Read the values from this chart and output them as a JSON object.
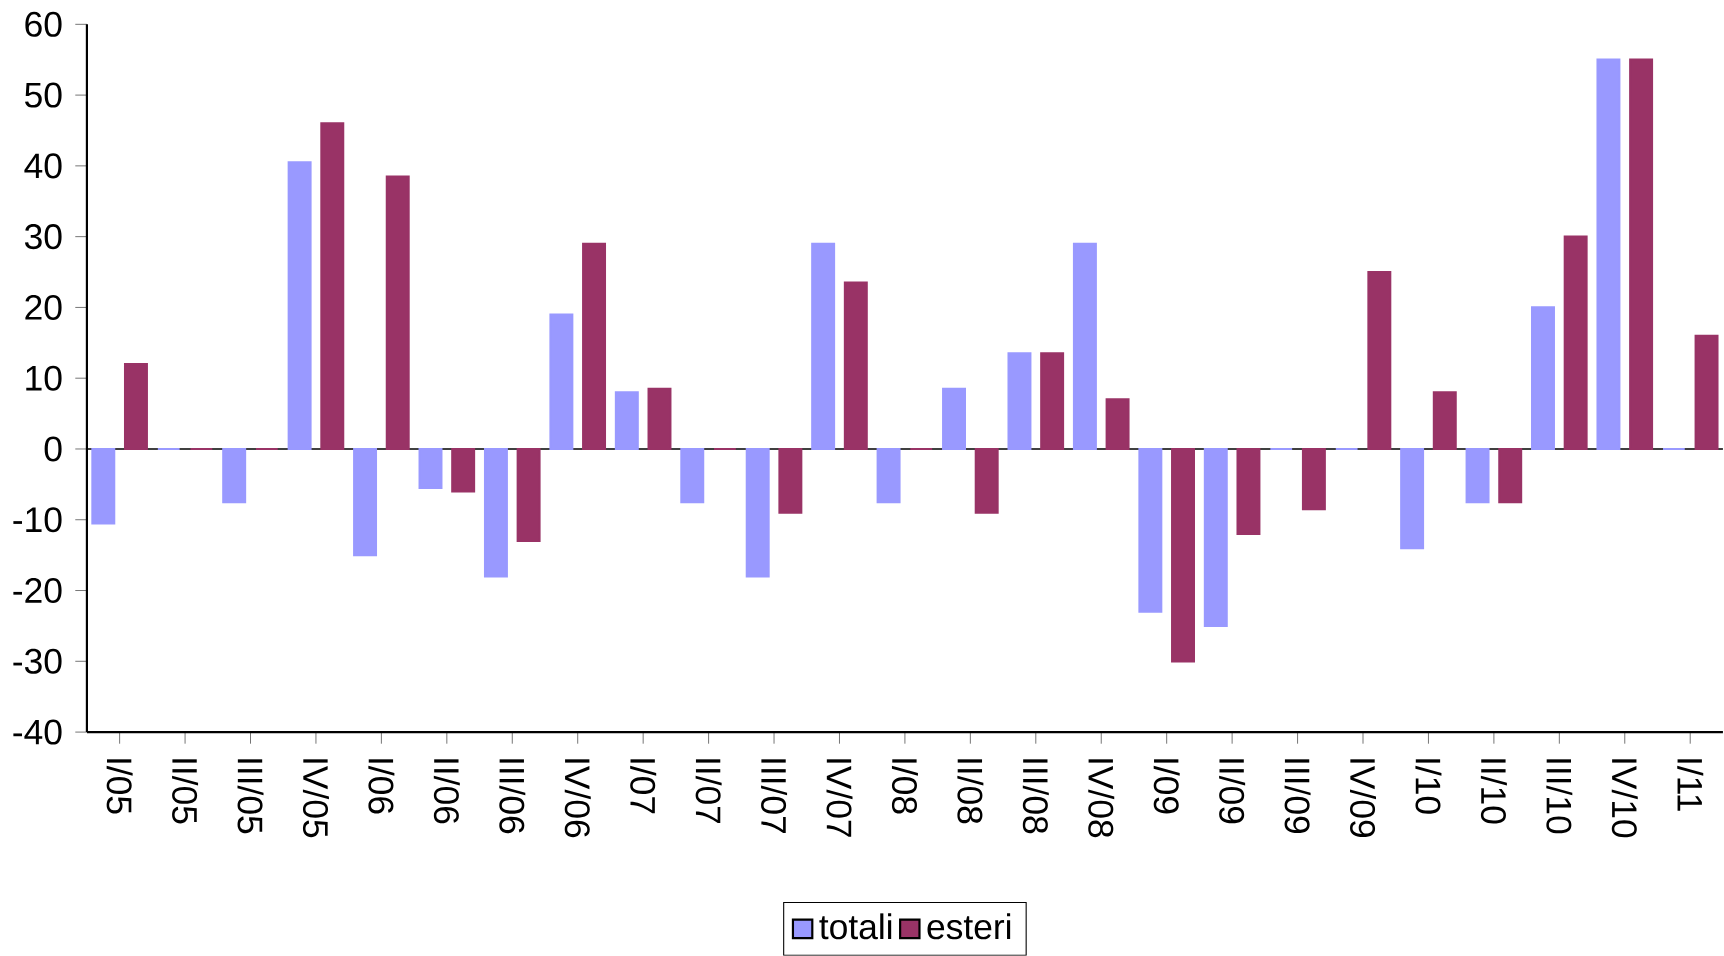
{
  "chart_data": {
    "type": "bar",
    "categories": [
      "I/05",
      "II/05",
      "III/05",
      "IV/05",
      "I/06",
      "II/06",
      "III/06",
      "IV/06",
      "I/07",
      "II/07",
      "III/07",
      "IV/07",
      "I/08",
      "II/08",
      "III/08",
      "IV/08",
      "I/09",
      "II/09",
      "III/09",
      "IV/09",
      "I/10",
      "II/10",
      "III/10",
      "IV/10",
      "I/11"
    ],
    "series": [
      {
        "name": "totali",
        "color": "#9999ff",
        "values": [
          -10.5,
          0,
          -7.5,
          40.5,
          -15,
          -5.5,
          -18,
          19,
          8,
          -7.5,
          -18,
          29,
          -7.5,
          8.5,
          13.5,
          29,
          -23,
          -25,
          0,
          0,
          -14,
          -7.5,
          20,
          55,
          0
        ]
      },
      {
        "name": "esteri",
        "color": "#993366",
        "values": [
          12,
          0,
          0,
          46,
          38.5,
          -6,
          -13,
          29,
          8.5,
          0,
          -9,
          23.5,
          0,
          -9,
          13.5,
          7,
          -30,
          -12,
          -8.5,
          25,
          8,
          -7.5,
          30,
          55,
          16
        ]
      }
    ],
    "ylim": [
      -40,
      60
    ],
    "yticks": [
      -40,
      -30,
      -20,
      -10,
      0,
      10,
      20,
      30,
      40,
      50,
      60
    ],
    "ref_lines": [
      {
        "axis": "y",
        "value": 0,
        "color": "#000000"
      }
    ],
    "grid": false,
    "legend": "bottom"
  }
}
